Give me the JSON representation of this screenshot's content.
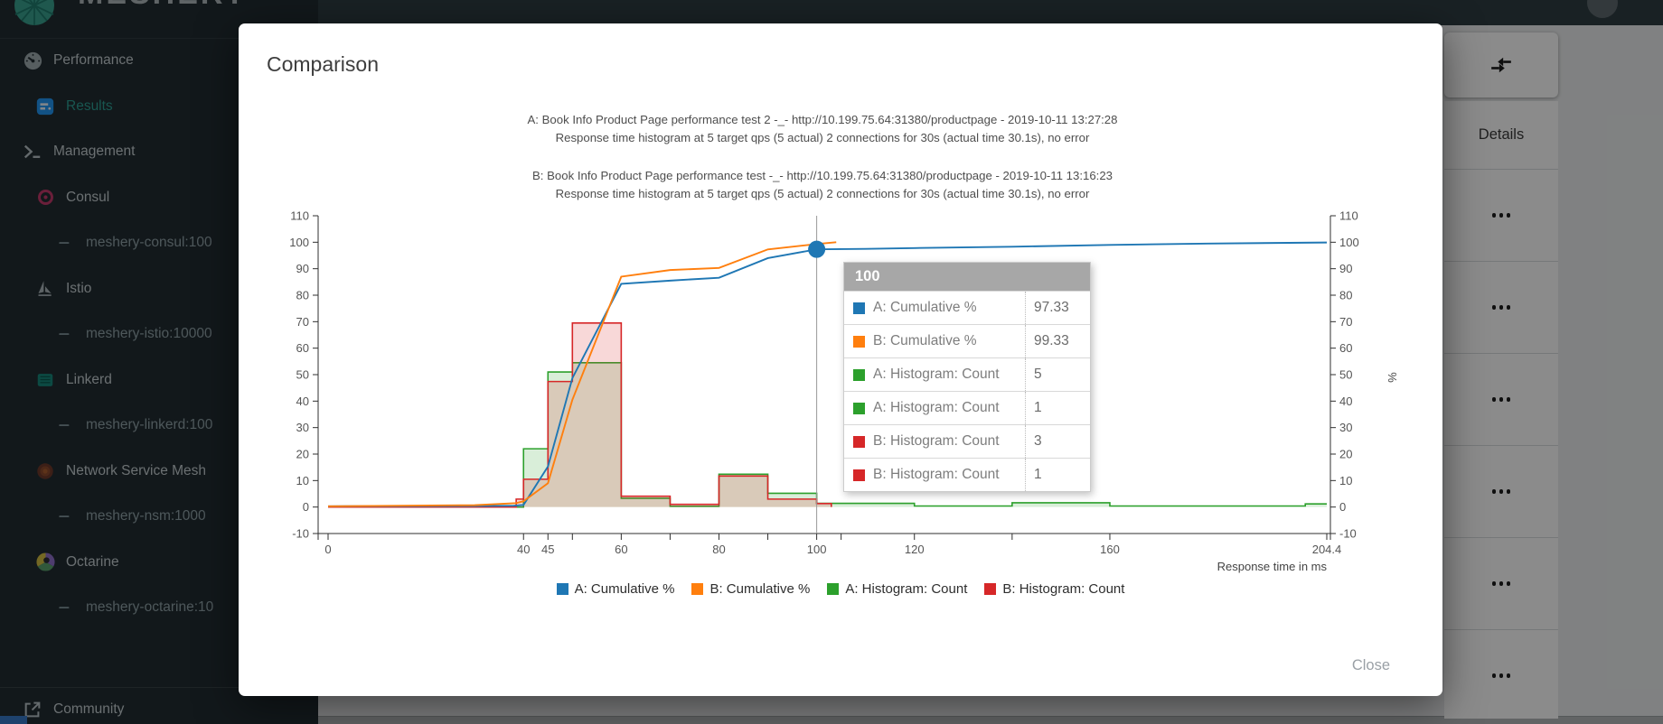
{
  "brand": {
    "name": "MESHERY"
  },
  "sidebar": {
    "items": [
      {
        "id": "performance",
        "icon": "gauge",
        "label": "Performance",
        "indent": 0,
        "active": false
      },
      {
        "id": "results",
        "icon": "results",
        "label": "Results",
        "indent": 1,
        "active": true
      },
      {
        "id": "management",
        "icon": "terminal",
        "label": "Management",
        "indent": 0,
        "active": false
      },
      {
        "id": "consul",
        "icon": "consul",
        "label": "Consul",
        "indent": 1,
        "active": false
      },
      {
        "id": "meshery-consul",
        "icon": "dash",
        "label": "meshery-consul:100",
        "indent": 2,
        "active": false
      },
      {
        "id": "istio",
        "icon": "istio",
        "label": "Istio",
        "indent": 1,
        "active": false
      },
      {
        "id": "meshery-istio",
        "icon": "dash",
        "label": "meshery-istio:10000",
        "indent": 2,
        "active": false
      },
      {
        "id": "linkerd",
        "icon": "linkerd",
        "label": "Linkerd",
        "indent": 1,
        "active": false
      },
      {
        "id": "meshery-linkerd",
        "icon": "dash",
        "label": "meshery-linkerd:100",
        "indent": 2,
        "active": false
      },
      {
        "id": "nsm",
        "icon": "nsm",
        "label": "Network Service Mesh",
        "indent": 1,
        "active": false
      },
      {
        "id": "meshery-nsm",
        "icon": "dash",
        "label": "meshery-nsm:1000",
        "indent": 2,
        "active": false
      },
      {
        "id": "octarine",
        "icon": "octarine",
        "label": "Octarine",
        "indent": 1,
        "active": false
      },
      {
        "id": "meshery-octarine",
        "icon": "dash",
        "label": "meshery-octarine:10",
        "indent": 2,
        "active": false
      }
    ],
    "footer": {
      "label": "Community",
      "icon": "external-link"
    }
  },
  "results_panel": {
    "column_header": "Details",
    "toolbar_icon": "compare-arrows",
    "row_count": 6,
    "row_action_icon": "more-options"
  },
  "modal": {
    "title": "Comparison",
    "close_label": "Close"
  },
  "chart_data": {
    "type": "mixed",
    "titles": [
      "A: Book Info Product Page performance test 2 -_- http://10.199.75.64:31380/productpage - 2019-10-11 13:27:28",
      "Response time histogram at 5 target qps (5 actual) 2 connections for 30s (actual time 30.1s), no error",
      "B: Book Info Product Page performance test -_- http://10.199.75.64:31380/productpage - 2019-10-11 13:16:23",
      "Response time histogram at 5 target qps (5 actual) 2 connections for 30s (actual time 30.1s), no error"
    ],
    "x_axis": {
      "label": "Response time in ms",
      "min": 0,
      "max": 204.4,
      "ticks_labeled": [
        0,
        40,
        45,
        60,
        80,
        100,
        120,
        160,
        204.4
      ],
      "ticks_unlabeled": [
        50,
        70,
        90,
        105,
        140
      ]
    },
    "y_axis": {
      "label": "%",
      "min": -10,
      "max": 110,
      "tick_step": 10,
      "sides": "both"
    },
    "series": [
      {
        "name": "A: Cumulative %",
        "type": "line",
        "color": "#1f77b4",
        "points": [
          [
            0,
            0.3
          ],
          [
            30,
            0.4
          ],
          [
            38,
            0.5
          ],
          [
            40,
            0.8
          ],
          [
            45,
            15.3
          ],
          [
            50,
            48.7
          ],
          [
            60,
            84.3
          ],
          [
            70,
            85.5
          ],
          [
            80,
            86.6
          ],
          [
            90,
            94
          ],
          [
            100,
            97.33
          ],
          [
            110,
            97.5
          ],
          [
            120,
            97.8
          ],
          [
            140,
            98.3
          ],
          [
            160,
            99
          ],
          [
            180,
            99.5
          ],
          [
            204.4,
            99.9
          ]
        ]
      },
      {
        "name": "B: Cumulative %",
        "type": "line",
        "color": "#ff7f0e",
        "points": [
          [
            0,
            0.3
          ],
          [
            30,
            0.7
          ],
          [
            38.5,
            1.5
          ],
          [
            40,
            2.2
          ],
          [
            45,
            9
          ],
          [
            50,
            40.5
          ],
          [
            60,
            87
          ],
          [
            70,
            89.5
          ],
          [
            80,
            90.3
          ],
          [
            90,
            97.3
          ],
          [
            100,
            99.33
          ],
          [
            104,
            100
          ]
        ]
      },
      {
        "name": "A: Histogram: Count",
        "type": "step-area",
        "color": "#2ca02c",
        "buckets": [
          [
            40,
            45,
            22
          ],
          [
            45,
            50,
            51
          ],
          [
            50,
            60,
            54.5
          ],
          [
            60,
            70,
            3.3
          ],
          [
            70,
            80,
            0.3
          ],
          [
            80,
            90,
            12.4
          ],
          [
            90,
            100,
            5.2
          ],
          [
            100,
            120,
            1.4
          ],
          [
            120,
            140,
            0.4
          ],
          [
            140,
            160,
            1.6
          ],
          [
            160,
            200,
            0.4
          ],
          [
            200,
            204.4,
            1.2
          ]
        ]
      },
      {
        "name": "B: Histogram: Count",
        "type": "step-area",
        "color": "#d62728",
        "buckets": [
          [
            38.5,
            40,
            3
          ],
          [
            40,
            45,
            10.5
          ],
          [
            45,
            50,
            47.4
          ],
          [
            50,
            60,
            69.5
          ],
          [
            60,
            70,
            4.1
          ],
          [
            70,
            80,
            1
          ],
          [
            80,
            90,
            11.7
          ],
          [
            90,
            100,
            3
          ],
          [
            100,
            103,
            1.3
          ]
        ]
      }
    ],
    "selection": {
      "x": 100,
      "marker_series": "A: Cumulative %",
      "marker_value": 97.33
    },
    "tooltip": {
      "header": "100",
      "rows": [
        {
          "label": "A: Cumulative %",
          "value": "97.33",
          "color": "#1f77b4"
        },
        {
          "label": "B: Cumulative %",
          "value": "99.33",
          "color": "#ff7f0e"
        },
        {
          "label": "A: Histogram: Count",
          "value": "5",
          "color": "#2ca02c"
        },
        {
          "label": "A: Histogram: Count",
          "value": "1",
          "color": "#2ca02c"
        },
        {
          "label": "B: Histogram: Count",
          "value": "3",
          "color": "#d62728"
        },
        {
          "label": "B: Histogram: Count",
          "value": "1",
          "color": "#d62728"
        }
      ]
    },
    "legend": [
      {
        "label": "A: Cumulative %",
        "color": "#1f77b4"
      },
      {
        "label": "B: Cumulative %",
        "color": "#ff7f0e"
      },
      {
        "label": "A: Histogram: Count",
        "color": "#2ca02c"
      },
      {
        "label": "B: Histogram: Count",
        "color": "#d62728"
      }
    ]
  }
}
